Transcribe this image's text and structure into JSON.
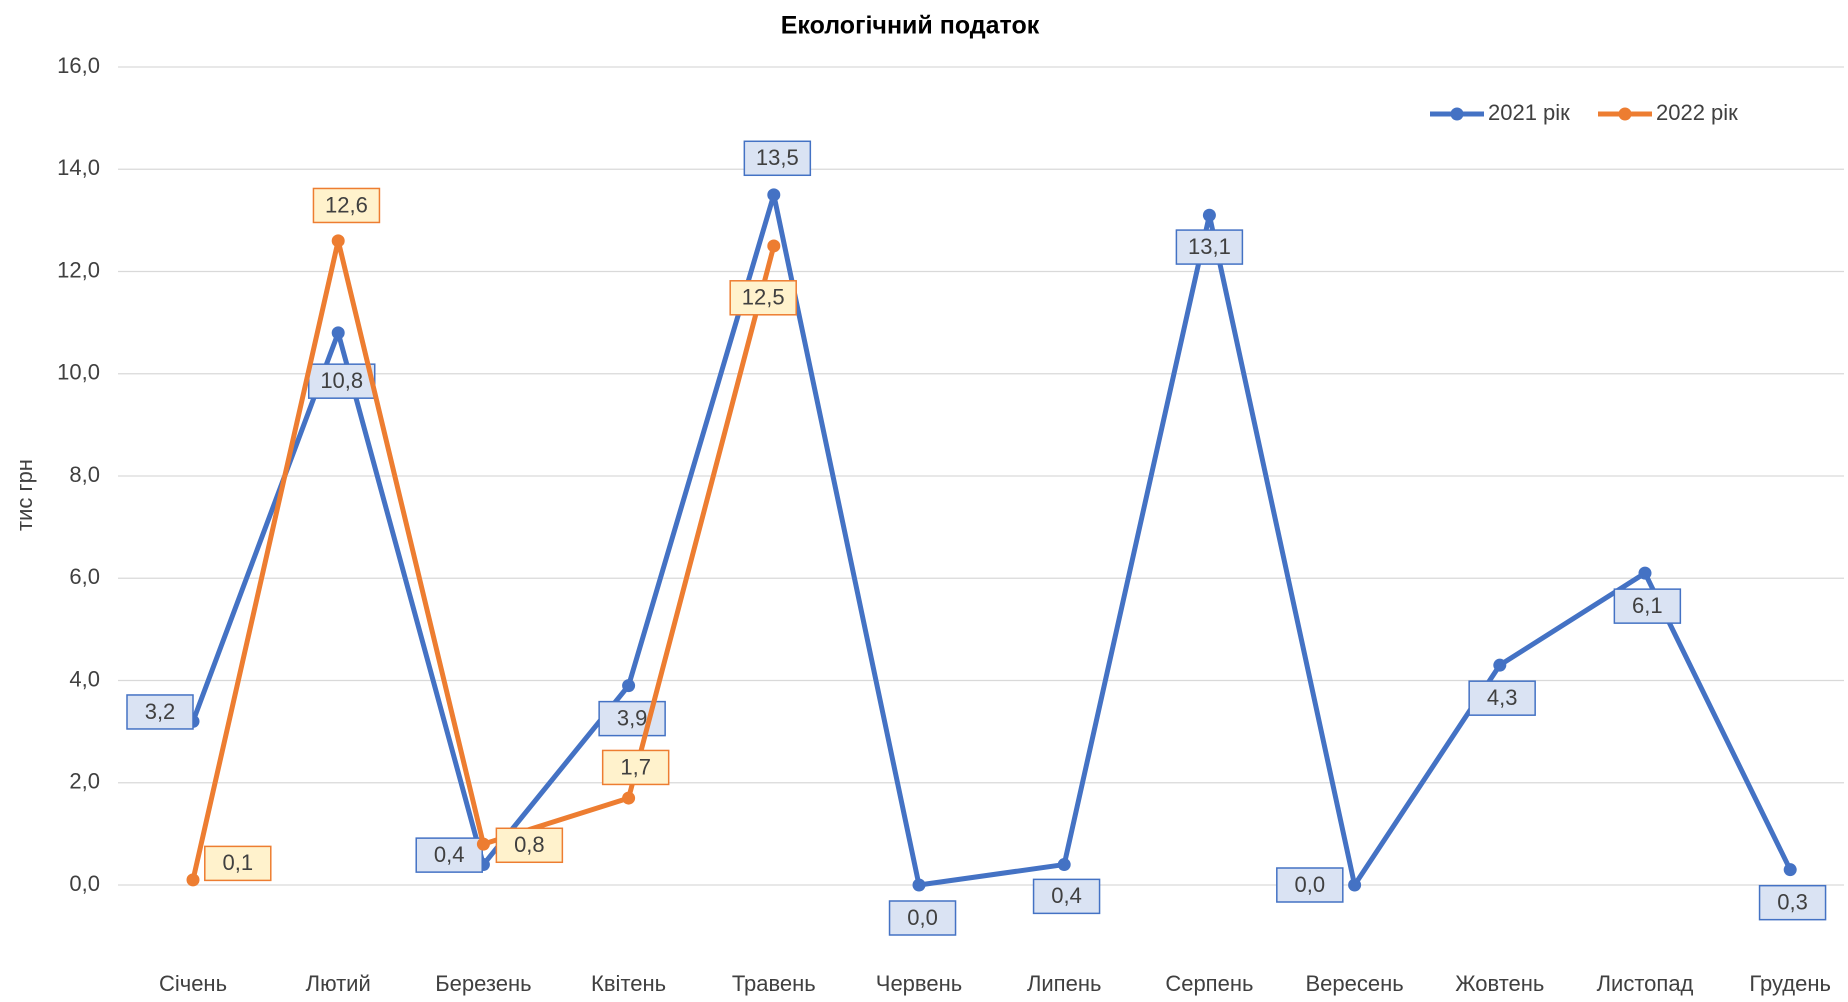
{
  "chart_data": {
    "type": "line",
    "title": "Екологічний податок",
    "y_label": "тис грн",
    "categories": [
      "Січень",
      "Лютий",
      "Березень",
      "Квітень",
      "Травень",
      "Червень",
      "Липень",
      "Серпень",
      "Вересень",
      "Жовтень",
      "Листопад",
      "Грудень"
    ],
    "series": [
      {
        "name": "2021 рік",
        "color": "#4472c4",
        "label_fill": "#dae3f3",
        "values": [
          3.2,
          10.8,
          0.4,
          3.9,
          13.5,
          0.0,
          0.4,
          13.1,
          0.0,
          4.3,
          6.1,
          0.3
        ],
        "value_labels": [
          "3,2",
          "10,8",
          "0,4",
          "3,9",
          "13,5",
          "0,0",
          "0,4",
          "13,1",
          "0,0",
          "4,3",
          "6,1",
          "0,3"
        ]
      },
      {
        "name": "2022 рік",
        "color": "#ed7d31",
        "label_fill": "#fff2cc",
        "values": [
          0.1,
          12.6,
          0.8,
          1.7,
          12.5,
          null,
          null,
          null,
          null,
          null,
          null,
          null
        ],
        "value_labels": [
          "0,1",
          "12,6",
          "0,8",
          "1,7",
          "12,5",
          null,
          null,
          null,
          null,
          null,
          null,
          null
        ]
      }
    ],
    "ylim": [
      0,
      16
    ],
    "yticks": [
      {
        "value": 0,
        "label": "0,0"
      },
      {
        "value": 2,
        "label": "2,0"
      },
      {
        "value": 4,
        "label": "4,0"
      },
      {
        "value": 6,
        "label": "6,0"
      },
      {
        "value": 8,
        "label": "8,0"
      },
      {
        "value": 10,
        "label": "10,0"
      },
      {
        "value": 12,
        "label": "12,0"
      },
      {
        "value": 14,
        "label": "14,0"
      },
      {
        "value": 16,
        "label": "16,0"
      }
    ],
    "grid": true,
    "legend": "top-right"
  }
}
